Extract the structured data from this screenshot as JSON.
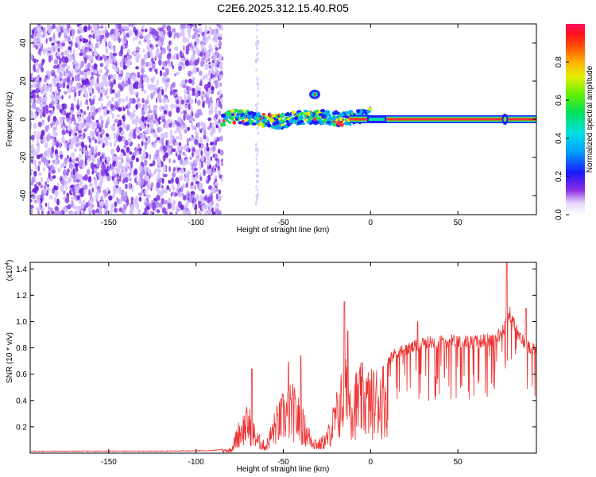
{
  "title": "C2E6.2025.312.15.40.R05",
  "colors": {
    "snr_line": "#ee3333",
    "speckle_dark": "#6a1fd8",
    "speckle_light": "#d6c2ff",
    "track": "#ff2a40"
  },
  "chart_data": [
    {
      "type": "heatmap",
      "name": "spectrogram",
      "xlabel": "Height of straight line (km)",
      "ylabel": "Frequency (Hz)",
      "xlim": [
        -195,
        95
      ],
      "ylim": [
        -50,
        50
      ],
      "xticks": [
        -150,
        -100,
        -50,
        0,
        50
      ],
      "yticks": [
        -40,
        -20,
        0,
        20,
        40
      ],
      "noise_region_km": [
        -195,
        -85
      ],
      "track_start_km": -85,
      "track_center_hz": 0,
      "spike_km": -65,
      "blob": {
        "x_km": -32,
        "y_hz": 13
      },
      "colorbar": {
        "label": "Normalized spectral amplitude",
        "ticks": [
          0.0,
          0.2,
          0.4,
          0.6,
          0.8
        ],
        "tick_labels": [
          "0.0",
          "0.2",
          "0.4",
          "0.6",
          "0.8"
        ],
        "range": [
          0,
          1
        ]
      }
    },
    {
      "type": "line",
      "name": "snr",
      "xlabel": "Height of straight line (km)",
      "ylabel": "SNR (10 * v/v)",
      "multiplier": "(x10",
      "multiplier_exp": "4",
      "multiplier_close": ")",
      "xlim": [
        -195,
        95
      ],
      "ylim": [
        0,
        1.45
      ],
      "xticks": [
        -150,
        -100,
        -50,
        0,
        50
      ],
      "yticks": [
        0.2,
        0.4,
        0.6,
        0.8,
        1.0,
        1.2,
        1.4
      ],
      "ytick_labels": [
        "0.2",
        "0.4",
        "0.6",
        "0.8",
        "1.0",
        "1.2",
        "1.4"
      ],
      "envelope": {
        "x": [
          -195,
          -120,
          -90,
          -80,
          -75,
          -70,
          -65,
          -60,
          -55,
          -50,
          -45,
          -40,
          -35,
          -30,
          -25,
          -20,
          -15,
          -10,
          -5,
          0,
          5,
          10,
          15,
          20,
          25,
          30,
          35,
          40,
          45,
          50,
          55,
          60,
          65,
          70,
          75,
          80,
          85,
          90,
          95
        ],
        "y": [
          0.015,
          0.015,
          0.02,
          0.04,
          0.28,
          0.38,
          0.17,
          0.08,
          0.33,
          0.48,
          0.55,
          0.4,
          0.2,
          0.1,
          0.18,
          0.45,
          0.75,
          0.62,
          0.7,
          0.65,
          0.7,
          0.74,
          0.8,
          0.82,
          0.84,
          0.86,
          0.88,
          0.88,
          0.89,
          0.89,
          0.88,
          0.88,
          0.89,
          0.9,
          0.94,
          1.1,
          0.92,
          0.85,
          0.82
        ]
      },
      "spikes": [
        {
          "x": -68,
          "y": 0.64
        },
        {
          "x": -47,
          "y": 0.69
        },
        {
          "x": -40,
          "y": 0.74
        },
        {
          "x": -15,
          "y": 1.15
        },
        {
          "x": -13,
          "y": 0.93
        },
        {
          "x": 27,
          "y": 1.0
        },
        {
          "x": 78,
          "y": 1.45
        },
        {
          "x": 89,
          "y": 1.1
        }
      ]
    }
  ]
}
